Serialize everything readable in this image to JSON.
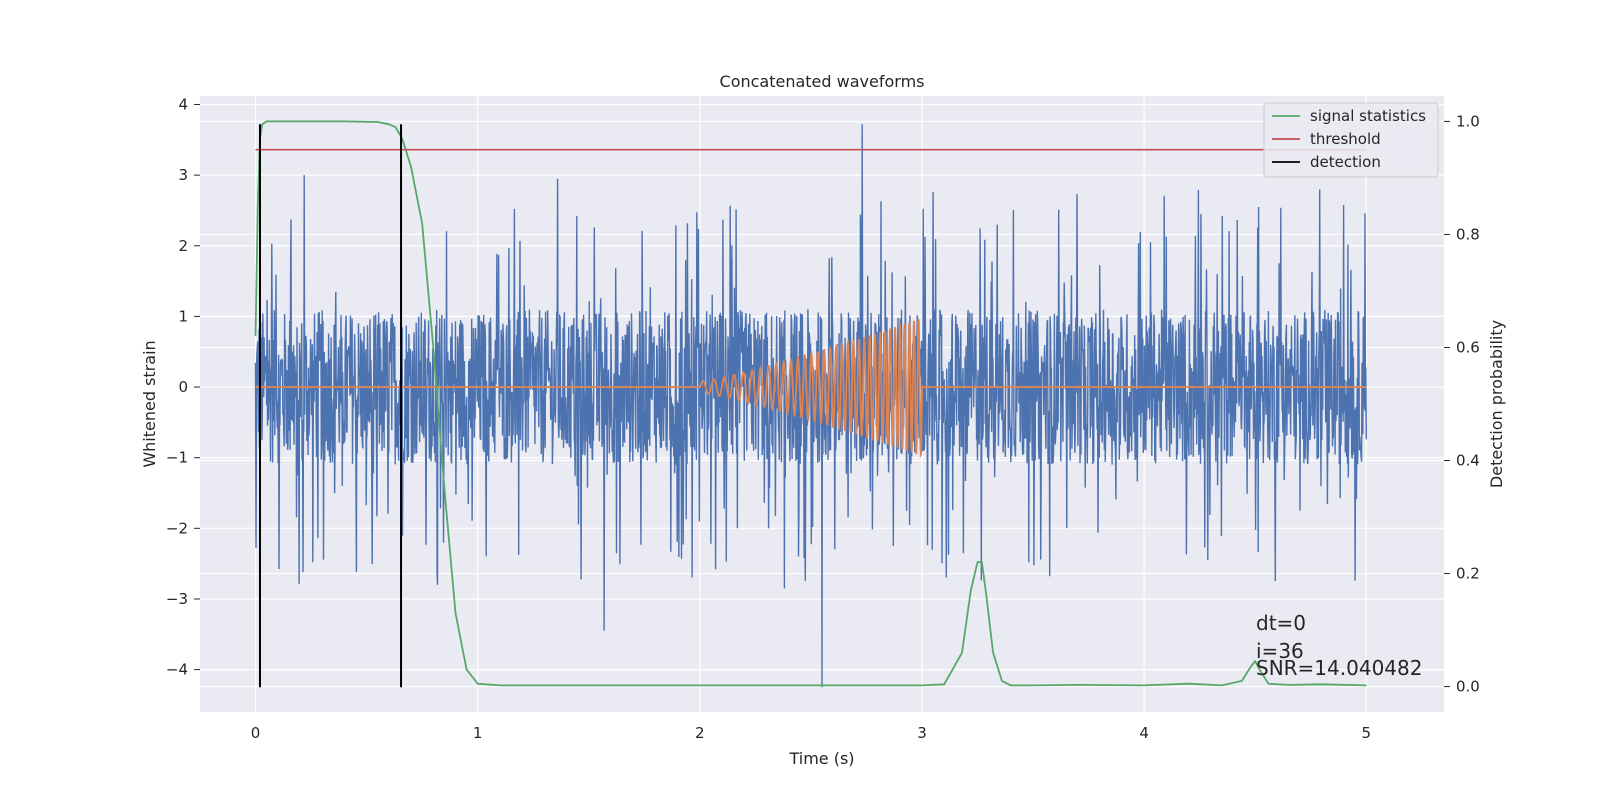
{
  "chart_data": {
    "type": "line",
    "title": "Concatenated waveforms",
    "xlabel": "Time (s)",
    "ylabel": "Whitened strain",
    "y2label": "Detection probability",
    "xlim": [
      -0.25,
      5.35
    ],
    "ylim": [
      -4.6,
      4.12
    ],
    "y2lim": [
      -0.045,
      1.045
    ],
    "x_ticks": [
      0,
      1,
      2,
      3,
      4,
      5
    ],
    "x_tick_labels": [
      "0",
      "1",
      "2",
      "3",
      "4",
      "5"
    ],
    "y_ticks": [
      4,
      3,
      2,
      1,
      0,
      -1,
      -2,
      -3,
      -4
    ],
    "y_tick_labels": [
      "4",
      "3",
      "2",
      "1",
      "0",
      "−1",
      "−2",
      "−3",
      "−4"
    ],
    "y2_ticks": [
      1.0,
      0.8,
      0.6,
      0.4,
      0.2,
      0.0
    ],
    "y2_tick_labels": [
      "1.0",
      "0.8",
      "0.6",
      "0.4",
      "0.2",
      "0.0"
    ],
    "grid": true,
    "legend_position": "top-right",
    "colors": {
      "strain": "#4c72b0",
      "template": "#dd8452",
      "signal_statistics": "#55a868",
      "threshold": "#c44e52",
      "detection": "#000000",
      "background": "#eaeaf2",
      "grid": "#ffffff"
    },
    "legend": [
      {
        "label": "signal statistics",
        "color": "#55a868"
      },
      {
        "label": "threshold",
        "color": "#c44e52"
      },
      {
        "label": "detection",
        "color": "#000000"
      }
    ],
    "series": [
      {
        "name": "signal statistics",
        "axis": "right",
        "x": [
          0.0,
          0.01,
          0.02,
          0.03,
          0.05,
          0.1,
          0.2,
          0.4,
          0.55,
          0.6,
          0.63,
          0.66,
          0.7,
          0.75,
          0.8,
          0.85,
          0.9,
          0.95,
          1.0,
          1.1,
          1.5,
          2.0,
          2.5,
          3.0,
          3.1,
          3.18,
          3.22,
          3.25,
          3.27,
          3.29,
          3.32,
          3.36,
          3.4,
          3.5,
          3.7,
          4.0,
          4.2,
          4.35,
          4.44,
          4.48,
          4.5,
          4.52,
          4.56,
          4.65,
          4.8,
          5.0
        ],
        "y": [
          0.62,
          0.85,
          0.97,
          0.995,
          1.0,
          1.0,
          1.0,
          1.0,
          0.999,
          0.995,
          0.99,
          0.97,
          0.92,
          0.82,
          0.6,
          0.35,
          0.13,
          0.03,
          0.005,
          0.002,
          0.002,
          0.002,
          0.002,
          0.002,
          0.004,
          0.06,
          0.17,
          0.22,
          0.22,
          0.16,
          0.06,
          0.01,
          0.002,
          0.002,
          0.003,
          0.002,
          0.005,
          0.002,
          0.01,
          0.035,
          0.045,
          0.03,
          0.005,
          0.003,
          0.004,
          0.002
        ]
      },
      {
        "name": "threshold",
        "axis": "right",
        "x": [
          0.0,
          5.0
        ],
        "y": [
          0.95,
          0.95
        ]
      },
      {
        "name": "detection",
        "axis": "left",
        "segments": [
          {
            "x": 0.02,
            "y": [
              -4.25,
              3.72
            ]
          },
          {
            "x": 0.655,
            "y": [
              -4.25,
              3.72
            ]
          }
        ]
      },
      {
        "axis": "left",
        "kind": "noise",
        "x_range": [
          0.0,
          5.0
        ],
        "core_amplitude": 1.1,
        "spike_max": 3.72,
        "spike_min": -4.25,
        "peak_points": [
          {
            "x": 0.22,
            "y": 3.0
          },
          {
            "x": 0.82,
            "y": -2.8
          },
          {
            "x": 1.57,
            "y": -3.45
          },
          {
            "x": 2.38,
            "y": -2.85
          },
          {
            "x": 2.55,
            "y": -4.25
          },
          {
            "x": 2.73,
            "y": 3.72
          },
          {
            "x": 1.36,
            "y": 2.95
          }
        ]
      },
      {
        "axis": "left",
        "kind": "chirp",
        "baseline_x": [
          0.0,
          5.0
        ],
        "baseline_y": 0.0,
        "chirp_x": [
          2.0,
          3.0
        ],
        "amplitude_start": 0.08,
        "amplitude_end": 0.98,
        "cycles": 34
      }
    ],
    "annotations": [
      "dt=0",
      "i=36",
      "SNR=14.040482"
    ]
  }
}
